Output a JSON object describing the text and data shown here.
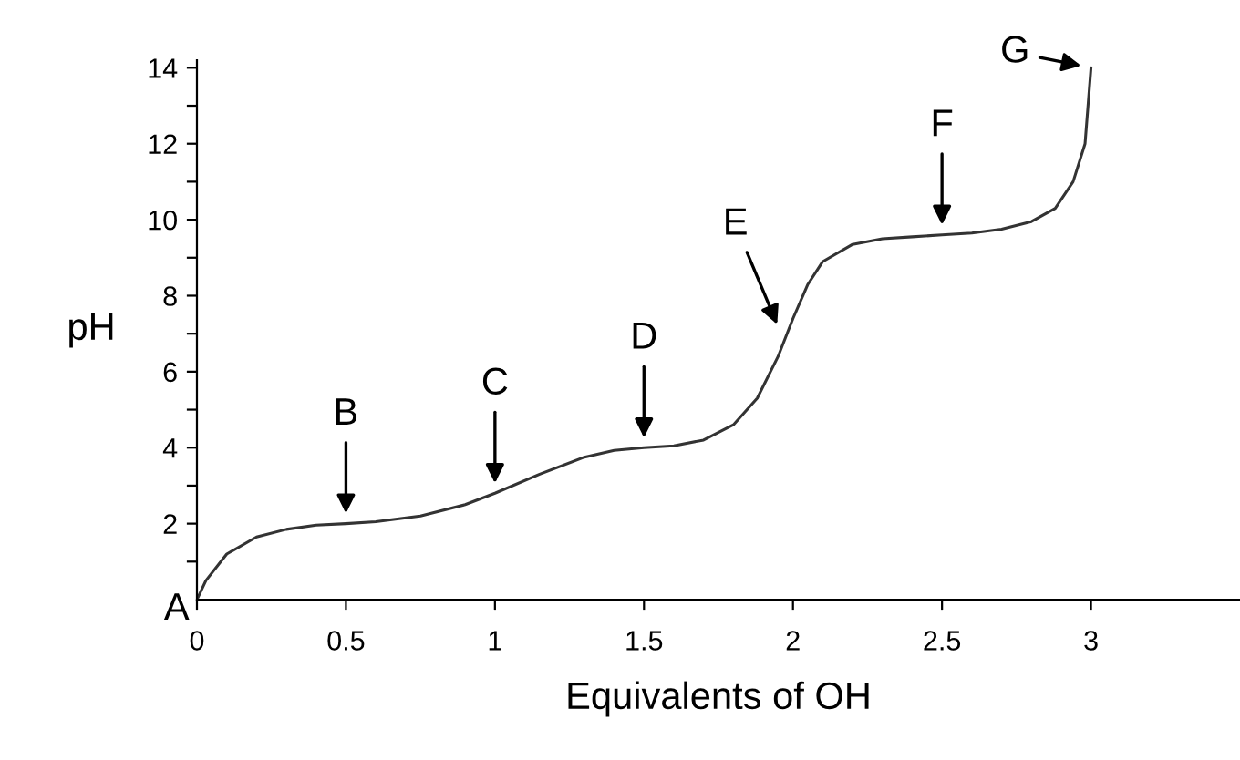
{
  "chart_data": {
    "type": "line",
    "xlabel": "Equivalents of OH",
    "ylabel": "pH",
    "x": [
      0,
      0.03,
      0.1,
      0.2,
      0.3,
      0.4,
      0.5,
      0.6,
      0.75,
      0.9,
      1.0,
      1.15,
      1.3,
      1.4,
      1.5,
      1.6,
      1.7,
      1.8,
      1.88,
      1.95,
      2.0,
      2.05,
      2.1,
      2.2,
      2.3,
      2.4,
      2.5,
      2.6,
      2.7,
      2.8,
      2.88,
      2.94,
      2.98,
      3.0
    ],
    "series": [
      {
        "color": "#333333",
        "values": [
          0,
          0.5,
          1.2,
          1.65,
          1.85,
          1.96,
          2.0,
          2.05,
          2.2,
          2.5,
          2.8,
          3.3,
          3.75,
          3.93,
          4.0,
          4.05,
          4.2,
          4.6,
          5.3,
          6.4,
          7.4,
          8.3,
          8.9,
          9.35,
          9.5,
          9.55,
          9.6,
          9.65,
          9.75,
          9.95,
          10.3,
          11.0,
          12.0,
          14.0
        ]
      }
    ],
    "xlim": [
      0,
      3.5
    ],
    "ylim": [
      0,
      14.2
    ],
    "xticks": [
      0,
      0.5,
      1,
      1.5,
      2,
      2.5,
      3
    ],
    "yticks": [
      {
        "value": 1,
        "label": null
      },
      2,
      {
        "value": 3,
        "label": null
      },
      4,
      {
        "value": 5,
        "label": null
      },
      6,
      {
        "value": 7,
        "label": null
      },
      8,
      {
        "value": 9,
        "label": null
      },
      10,
      {
        "value": 11,
        "label": null
      },
      12,
      {
        "value": 13,
        "label": null
      },
      14
    ],
    "grid": false,
    "marker": "none",
    "line_style": "solid",
    "annotations": [
      {
        "text": "A",
        "x": 0,
        "y": 0
      },
      {
        "text": "B",
        "x": 0.5,
        "y": 2.0
      },
      {
        "text": "C",
        "x": 1,
        "y": 2.8
      },
      {
        "text": "D",
        "x": 1.5,
        "y": 4.0
      },
      {
        "text": "E",
        "x": 1.96,
        "y": 7.0
      },
      {
        "text": "F",
        "x": 2.5,
        "y": 9.6
      },
      {
        "text": "G",
        "x": 3,
        "y": 14.0
      }
    ]
  }
}
